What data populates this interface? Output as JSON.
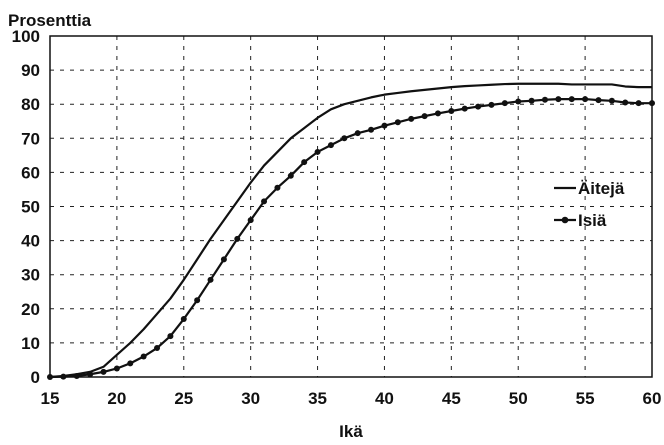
{
  "chart_data": {
    "type": "line",
    "title": "",
    "ylabel": "Prosenttia",
    "xlabel": "Ikä",
    "xlim": [
      15,
      60
    ],
    "ylim": [
      0,
      100
    ],
    "xticks": [
      15,
      20,
      25,
      30,
      35,
      40,
      45,
      50,
      55,
      60
    ],
    "yticks": [
      0,
      10,
      20,
      30,
      40,
      50,
      60,
      70,
      80,
      90,
      100
    ],
    "grid": true,
    "legend_position": "right",
    "x": [
      15,
      16,
      17,
      18,
      19,
      20,
      21,
      22,
      23,
      24,
      25,
      26,
      27,
      28,
      29,
      30,
      31,
      32,
      33,
      34,
      35,
      36,
      37,
      38,
      39,
      40,
      41,
      42,
      43,
      44,
      45,
      46,
      47,
      48,
      49,
      50,
      51,
      52,
      53,
      54,
      55,
      56,
      57,
      58,
      59,
      60
    ],
    "series": [
      {
        "name": "Äitejä",
        "marker": false,
        "values": [
          0,
          0.3,
          0.8,
          1.5,
          3,
          6.5,
          10,
          14,
          18.5,
          23,
          28.5,
          34.5,
          40.5,
          46,
          51.5,
          57,
          62,
          66,
          70,
          73,
          76,
          78.5,
          80,
          81,
          82,
          82.8,
          83.3,
          83.8,
          84.2,
          84.6,
          85,
          85.3,
          85.5,
          85.7,
          85.9,
          86,
          86,
          86,
          86,
          85.8,
          85.8,
          85.8,
          85.8,
          85.2,
          85,
          85
        ]
      },
      {
        "name": "Isiä",
        "marker": true,
        "values": [
          0,
          0.1,
          0.3,
          0.8,
          1.5,
          2.5,
          4,
          6,
          8.5,
          12,
          17,
          22.5,
          28.5,
          34.5,
          40.5,
          46,
          51.5,
          55.5,
          59,
          63,
          66,
          68,
          70,
          71.5,
          72.5,
          73.7,
          74.7,
          75.7,
          76.5,
          77.3,
          78,
          78.7,
          79.3,
          79.8,
          80.3,
          80.8,
          81,
          81.3,
          81.5,
          81.5,
          81.5,
          81.2,
          81,
          80.5,
          80.3,
          80.3
        ]
      }
    ],
    "colors": {
      "line": "#111111",
      "grid": "#222222",
      "background": "#ffffff"
    }
  }
}
